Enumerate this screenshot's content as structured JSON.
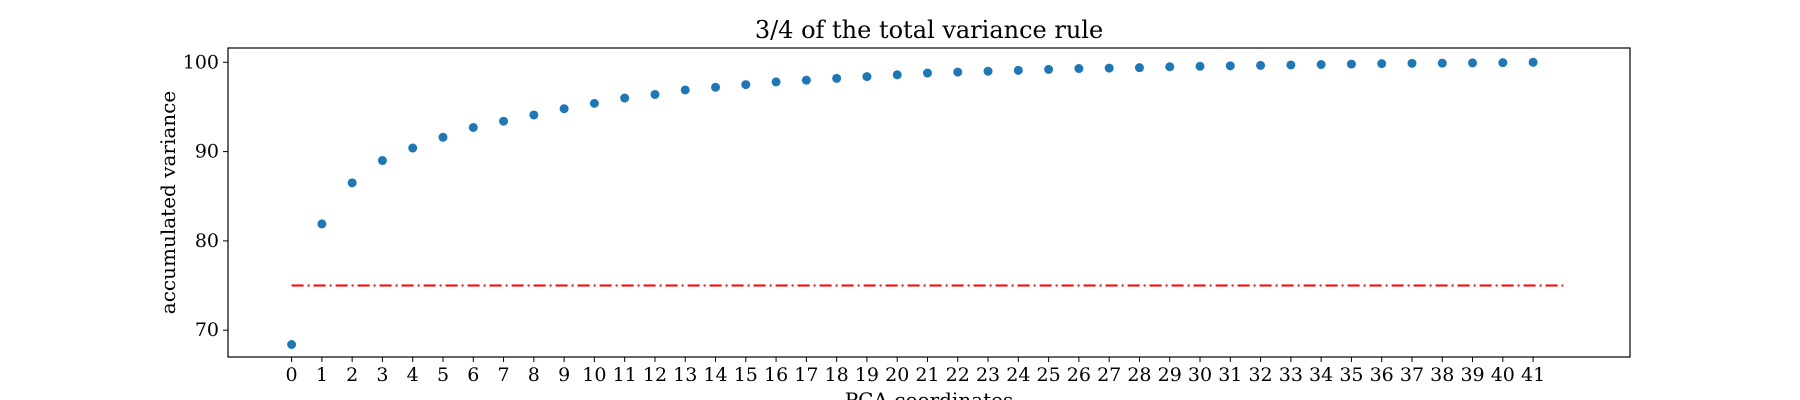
{
  "chart_data": {
    "type": "scatter",
    "title": "3/4 of the total variance rule",
    "xlabel": "PCA coordinates",
    "ylabel": "accumulated variance",
    "x": [
      0,
      1,
      2,
      3,
      4,
      5,
      6,
      7,
      8,
      9,
      10,
      11,
      12,
      13,
      14,
      15,
      16,
      17,
      18,
      19,
      20,
      21,
      22,
      23,
      24,
      25,
      26,
      27,
      28,
      29,
      30,
      31,
      32,
      33,
      34,
      35,
      36,
      37,
      38,
      39,
      40,
      41
    ],
    "x_tick_labels": [
      "0",
      "1",
      "2",
      "3",
      "4",
      "5",
      "6",
      "7",
      "8",
      "9",
      "10",
      "11",
      "12",
      "13",
      "14",
      "15",
      "16",
      "17",
      "18",
      "19",
      "20",
      "21",
      "22",
      "23",
      "24",
      "25",
      "26",
      "27",
      "28",
      "29",
      "30",
      "31",
      "32",
      "33",
      "34",
      "35",
      "36",
      "37",
      "38",
      "39",
      "40",
      "41"
    ],
    "y_ticks": [
      70,
      80,
      90,
      100
    ],
    "y_tick_labels": [
      "70",
      "80",
      "90",
      "100"
    ],
    "xlim": [
      -2.1,
      44.2
    ],
    "ylim": [
      67,
      101.6
    ],
    "series": [
      {
        "color": "#1f77b4",
        "values": [
          68.4,
          81.9,
          86.5,
          89.0,
          90.4,
          91.6,
          92.7,
          93.4,
          94.1,
          94.8,
          95.4,
          96.0,
          96.4,
          96.9,
          97.2,
          97.5,
          97.8,
          98.0,
          98.2,
          98.4,
          98.6,
          98.8,
          98.9,
          99.0,
          99.1,
          99.2,
          99.3,
          99.35,
          99.4,
          99.5,
          99.55,
          99.6,
          99.65,
          99.7,
          99.75,
          99.8,
          99.85,
          99.88,
          99.9,
          99.93,
          99.96,
          100.0
        ]
      }
    ],
    "threshold_line": {
      "y": 75,
      "x_start": 0,
      "x_end": 42,
      "color": "#ff0000",
      "style": "dash-dot"
    },
    "grid": false,
    "legend": "none"
  }
}
